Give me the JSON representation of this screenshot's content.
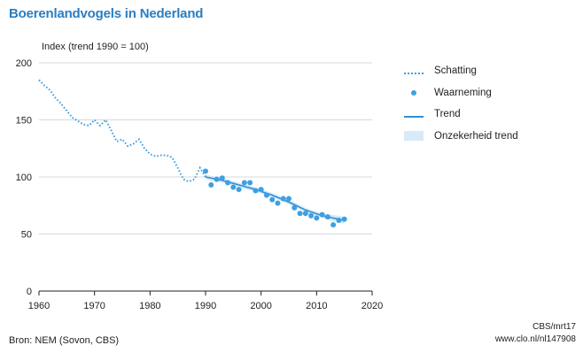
{
  "title": "Boerenlandvogels in Nederland",
  "source": "Bron: NEM (Sovon, CBS)",
  "credit_code": "CBS/mrt17",
  "credit_url": "www.clo.nl/nl147908",
  "colors": {
    "title": "#2a7ec2",
    "estimate": "#3f9fe0",
    "observation": "#3f9fe0",
    "trend": "#2f8fd5",
    "band": "#d6eaf8"
  },
  "legend": [
    {
      "label": "Schatting",
      "style": "dotted"
    },
    {
      "label": "Waarneming",
      "style": "point"
    },
    {
      "label": "Trend",
      "style": "line"
    },
    {
      "label": "Onzekerheid trend",
      "style": "band"
    }
  ],
  "chart_data": {
    "type": "line",
    "title": "Boerenlandvogels in Nederland",
    "ylabel": "Index (trend 1990 = 100)",
    "xlabel": "",
    "xlim": [
      1960,
      2020
    ],
    "ylim": [
      0,
      200
    ],
    "xticks": [
      1960,
      1970,
      1980,
      1990,
      2000,
      2010,
      2020
    ],
    "yticks": [
      0,
      50,
      100,
      150,
      200
    ],
    "grid": "horizontal",
    "legend_position": "right",
    "series": [
      {
        "name": "Schatting",
        "style": "dotted",
        "x": [
          1960,
          1961,
          1962,
          1963,
          1964,
          1965,
          1966,
          1967,
          1968,
          1969,
          1970,
          1971,
          1972,
          1973,
          1974,
          1975,
          1976,
          1977,
          1978,
          1979,
          1980,
          1981,
          1982,
          1983,
          1984,
          1985,
          1986,
          1987,
          1988,
          1989,
          1990
        ],
        "values": [
          185,
          180,
          176,
          169,
          164,
          158,
          152,
          149,
          146,
          145,
          150,
          145,
          150,
          141,
          131,
          133,
          127,
          129,
          133,
          125,
          120,
          118,
          119,
          119,
          117,
          108,
          98,
          96,
          98,
          108,
          100
        ]
      },
      {
        "name": "Waarneming",
        "style": "point",
        "x": [
          1990,
          1991,
          1992,
          1993,
          1994,
          1995,
          1996,
          1997,
          1998,
          1999,
          2000,
          2001,
          2002,
          2003,
          2004,
          2005,
          2006,
          2007,
          2008,
          2009,
          2010,
          2011,
          2012,
          2013,
          2014,
          2015
        ],
        "values": [
          105,
          93,
          98,
          99,
          95,
          91,
          89,
          95,
          95,
          88,
          89,
          84,
          80,
          77,
          81,
          81,
          73,
          68,
          68,
          66,
          64,
          67,
          65,
          58,
          62,
          63
        ]
      },
      {
        "name": "Trend",
        "style": "line",
        "x": [
          1990,
          1993,
          1996,
          1999,
          2002,
          2005,
          2008,
          2011,
          2014,
          2015
        ],
        "values": [
          100,
          97,
          93,
          89,
          84,
          78,
          71,
          66,
          63,
          62
        ]
      },
      {
        "name": "Onzekerheid trend",
        "style": "band",
        "x": [
          1990,
          1993,
          1996,
          1999,
          2002,
          2005,
          2008,
          2011,
          2014,
          2015
        ],
        "lower": [
          98,
          95,
          91,
          87,
          82,
          76,
          69,
          64,
          60,
          59
        ],
        "upper": [
          102,
          99,
          95,
          91,
          86,
          80,
          73,
          68,
          66,
          65
        ]
      }
    ]
  }
}
